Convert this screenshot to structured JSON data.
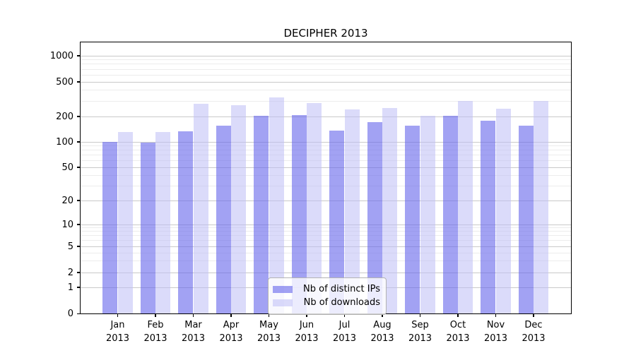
{
  "title": "DECIPHER 2013",
  "chart_data": {
    "type": "bar",
    "title": "DECIPHER 2013",
    "categories": [
      "Jan 2013",
      "Feb 2013",
      "Mar 2013",
      "Apr 2013",
      "May 2013",
      "Jun 2013",
      "Jul 2013",
      "Aug 2013",
      "Sep 2013",
      "Oct 2013",
      "Nov 2013",
      "Dec 2013"
    ],
    "series": [
      {
        "name": "Nb of distinct IPs",
        "values": [
          100,
          98,
          134,
          155,
          205,
          207,
          136,
          172,
          155,
          205,
          178,
          155
        ]
      },
      {
        "name": "Nb of downloads",
        "values": [
          130,
          131,
          280,
          268,
          330,
          283,
          240,
          250,
          205,
          300,
          245,
          300
        ]
      }
    ],
    "yscale": "symlog",
    "yticks": [
      0,
      1,
      2,
      5,
      10,
      20,
      50,
      100,
      200,
      500,
      1000
    ],
    "ylim": [
      0,
      1450
    ],
    "xlabel": "",
    "ylabel": "",
    "grid": true,
    "legend_position": "lower center"
  },
  "legend": {
    "items": [
      {
        "label": "Nb of distinct IPs"
      },
      {
        "label": "Nb of downloads"
      }
    ]
  },
  "colors": {
    "bar_distinct_ips": "rgba(105,105,235,0.62)",
    "bar_downloads": "rgba(190,190,245,0.55)",
    "bar_distinct_ips_hex": "#a2a2f2",
    "bar_downloads_hex": "#dcdcf9",
    "grid_major": "#c9c9c9",
    "grid_minor": "#ececec",
    "axis": "#000000"
  }
}
